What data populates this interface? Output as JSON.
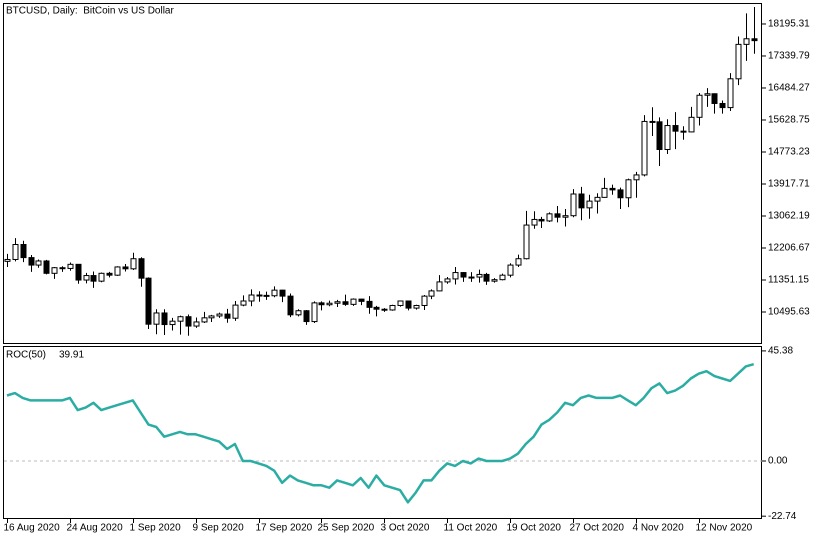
{
  "chart_data": [
    {
      "type": "candlestick",
      "title": "BTCUSD, Daily:  BitCoin vs US Dollar",
      "categories": [
        "16 Aug 2020",
        null,
        null,
        null,
        null,
        null,
        null,
        null,
        "24 Aug 2020",
        null,
        null,
        null,
        null,
        null,
        null,
        null,
        "1 Sep 2020",
        null,
        null,
        null,
        null,
        null,
        null,
        null,
        "9 Sep 2020",
        null,
        null,
        null,
        null,
        null,
        null,
        null,
        "17 Sep 2020",
        null,
        null,
        null,
        null,
        null,
        null,
        null,
        "25 Sep 2020",
        null,
        null,
        null,
        null,
        null,
        null,
        null,
        "3 Oct 2020",
        null,
        null,
        null,
        null,
        null,
        null,
        null,
        "11 Oct 2020",
        null,
        null,
        null,
        null,
        null,
        null,
        null,
        "19 Oct 2020",
        null,
        null,
        null,
        null,
        null,
        null,
        null,
        "27 Oct 2020",
        null,
        null,
        null,
        null,
        null,
        null,
        null,
        "4 Nov 2020",
        null,
        null,
        null,
        null,
        null,
        null,
        null,
        "12 Nov 2020",
        null,
        null,
        null,
        null,
        null,
        null,
        null
      ],
      "open": [
        11850,
        11900,
        12300,
        11950,
        11750,
        11860,
        11530,
        11680,
        11660,
        11770,
        11350,
        11470,
        11320,
        11530,
        11480,
        11700,
        11650,
        11920,
        11400,
        10170,
        10470,
        10160,
        10250,
        10370,
        10120,
        10230,
        10340,
        10390,
        10440,
        10330,
        10680,
        10790,
        10950,
        10940,
        10930,
        11080,
        10920,
        10420,
        10530,
        10240,
        10740,
        10690,
        10730,
        10770,
        10700,
        10840,
        10780,
        10620,
        10570,
        10550,
        10670,
        10790,
        10600,
        10670,
        10920,
        11060,
        11300,
        11380,
        11550,
        11430,
        11430,
        11500,
        11320,
        11360,
        11480,
        11750,
        11920,
        12820,
        12970,
        12930,
        13120,
        13030,
        13070,
        13650,
        13280,
        13460,
        13560,
        13800,
        13760,
        13550,
        14030,
        14160,
        15590,
        15580,
        14840,
        15480,
        15330,
        15310,
        15700,
        16290,
        16330,
        16070,
        15960,
        16730,
        17650,
        17800
      ],
      "high": [
        12050,
        12470,
        12400,
        12020,
        11900,
        11890,
        11700,
        11720,
        11820,
        11780,
        11540,
        11580,
        11550,
        11570,
        11720,
        11780,
        12080,
        11960,
        11420,
        10570,
        10570,
        10340,
        10400,
        10430,
        10350,
        10500,
        10420,
        10480,
        10580,
        10790,
        10940,
        11100,
        11050,
        11040,
        11180,
        11090,
        10990,
        10570,
        10550,
        10780,
        10780,
        10800,
        10820,
        10960,
        10860,
        10850,
        10920,
        10660,
        10600,
        10690,
        10800,
        10800,
        10690,
        10950,
        11100,
        11480,
        11430,
        11700,
        11560,
        11560,
        11630,
        11540,
        11400,
        11520,
        11800,
        12030,
        13200,
        13190,
        13040,
        13160,
        13330,
        13250,
        13780,
        13840,
        13630,
        13670,
        14080,
        13900,
        13820,
        14060,
        14240,
        15760,
        15970,
        15700,
        15650,
        15840,
        15460,
        15980,
        16350,
        16480,
        16340,
        16150,
        16880,
        17860,
        18480,
        18650
      ],
      "low": [
        11700,
        11850,
        11830,
        11570,
        11680,
        11500,
        11380,
        11570,
        11600,
        11250,
        11260,
        11140,
        11290,
        11420,
        11460,
        11580,
        11620,
        11170,
        10040,
        9900,
        9880,
        10000,
        9890,
        9860,
        10070,
        10200,
        10230,
        10340,
        10210,
        10260,
        10650,
        10650,
        10770,
        10820,
        10890,
        10760,
        10360,
        10380,
        10150,
        10200,
        10540,
        10650,
        10630,
        10660,
        10660,
        10680,
        10450,
        10380,
        10500,
        10530,
        10640,
        10540,
        10560,
        10550,
        10840,
        11050,
        11250,
        11230,
        11300,
        11300,
        11280,
        11220,
        11280,
        11340,
        11420,
        11700,
        11900,
        12720,
        12740,
        12900,
        12890,
        12780,
        13030,
        12950,
        12990,
        13130,
        13550,
        13630,
        13250,
        13300,
        13550,
        14120,
        15200,
        14400,
        14720,
        14850,
        15100,
        15300,
        15480,
        15980,
        15800,
        15800,
        15870,
        16560,
        17210,
        17400
      ],
      "close": [
        11900,
        12300,
        11950,
        11750,
        11860,
        11530,
        11680,
        11660,
        11770,
        11350,
        11470,
        11320,
        11530,
        11480,
        11700,
        11650,
        11920,
        11400,
        10170,
        10470,
        10160,
        10250,
        10370,
        10120,
        10230,
        10340,
        10390,
        10440,
        10330,
        10680,
        10790,
        10950,
        10940,
        10930,
        11080,
        10920,
        10420,
        10530,
        10240,
        10740,
        10690,
        10730,
        10770,
        10700,
        10840,
        10780,
        10620,
        10570,
        10550,
        10670,
        10790,
        10600,
        10670,
        10920,
        11060,
        11300,
        11380,
        11550,
        11430,
        11430,
        11500,
        11320,
        11360,
        11480,
        11750,
        11920,
        12820,
        12970,
        12930,
        13120,
        13030,
        13070,
        13650,
        13280,
        13460,
        13560,
        13800,
        13760,
        13550,
        14030,
        14160,
        15590,
        15580,
        14840,
        15480,
        15330,
        15310,
        15700,
        16290,
        16330,
        16070,
        15960,
        16730,
        17650,
        17800,
        17750
      ],
      "up_color": "#ffffff",
      "down_color": "#000000",
      "edge_color": "#000000",
      "ylim": [
        9667,
        18756
      ],
      "yticks": [
        18195.31,
        17339.79,
        16484.27,
        15628.75,
        14773.23,
        13917.71,
        13062.19,
        12206.67,
        11351.15,
        10495.63
      ]
    },
    {
      "type": "line",
      "series": [
        {
          "name": "ROC(50)",
          "color": "#2bada3",
          "values": [
            27,
            28,
            26,
            25,
            25,
            25,
            25,
            25,
            26,
            21,
            22,
            24,
            21,
            22,
            23,
            24,
            25,
            20,
            15,
            14,
            10,
            11,
            12,
            11,
            11,
            10,
            9,
            8,
            5,
            7,
            0,
            0,
            -1,
            -2,
            -4,
            -9,
            -6,
            -8,
            -9,
            -10,
            -10,
            -11,
            -8,
            -9,
            -10,
            -7,
            -11,
            -6,
            -10,
            -11,
            -12,
            -17,
            -13,
            -8,
            -8,
            -4,
            -1,
            -2,
            0,
            -1,
            1,
            0,
            0,
            0,
            1,
            3,
            7,
            10,
            15,
            17,
            20,
            24,
            23,
            26,
            27,
            26,
            26,
            26,
            27,
            25,
            23,
            26,
            30,
            32,
            28,
            29,
            31,
            34,
            36,
            37,
            35,
            34,
            33,
            36,
            39,
            39.91
          ]
        }
      ],
      "ylim": [
        -23.9,
        47.4
      ],
      "yticks": [
        {
          "value": 45.38,
          "label": "45.38"
        },
        {
          "value": 0,
          "label": "0.00"
        },
        {
          "value": -22.74,
          "label": "-22.74"
        }
      ]
    }
  ]
}
